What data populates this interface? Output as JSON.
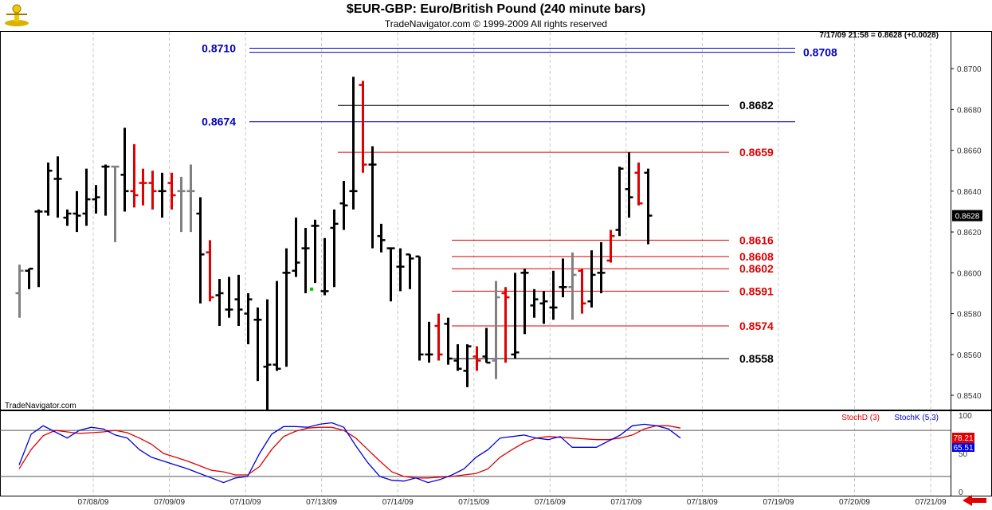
{
  "header": {
    "title": "$EUR-GBP:  Euro/British Pound  (240 minute bars)",
    "subtitle": "TradeNavigator.com © 1999-2009 All rights reserved"
  },
  "info_line": "7/17/09 21:58 = 0.8628 (+0.0028)",
  "watermark": "TradeNavigator.com",
  "last_price_label": "0.8628",
  "stoch_legend": {
    "d": "StochD (3)",
    "k": "StochK (5,3)"
  },
  "stoch_values": {
    "d": "78.21",
    "k": "65.51"
  },
  "colors": {
    "black": "#000000",
    "red": "#e00000",
    "gray": "#808080",
    "blue": "#0000c0",
    "green": "#00cc00",
    "stochD": "#e00000",
    "stochK": "#0000e0"
  },
  "chart_data": [
    {
      "type": "ohlc",
      "title": "$EUR-GBP:  Euro/British Pound  (240 minute bars)",
      "ylim": [
        0.8533,
        0.8718
      ],
      "y_ticks": [
        "0.8540",
        "0.8560",
        "0.8580",
        "0.8600",
        "0.8620",
        "0.8640",
        "0.8660",
        "0.8680",
        "0.8700"
      ],
      "x_ticks": [
        "07/08/09",
        "07/09/09",
        "07/10/09",
        "07/13/09",
        "07/14/09",
        "07/15/09",
        "07/16/09",
        "07/17/09",
        "07/18/09",
        "07/19/09",
        "07/20/09",
        "07/21/09"
      ],
      "grid": "vertical dashed",
      "bars": [
        {
          "o": 0.859,
          "h": 0.8604,
          "l": 0.8578,
          "c": 0.8601,
          "color": "gray"
        },
        {
          "o": 0.8601,
          "h": 0.8602,
          "l": 0.8592,
          "c": 0.8602,
          "color": "black"
        },
        {
          "o": 0.863,
          "h": 0.8631,
          "l": 0.8593,
          "c": 0.863,
          "color": "black"
        },
        {
          "o": 0.863,
          "h": 0.8654,
          "l": 0.8628,
          "c": 0.865,
          "color": "black"
        },
        {
          "o": 0.8646,
          "h": 0.8657,
          "l": 0.8627,
          "c": 0.8646,
          "color": "black"
        },
        {
          "o": 0.8627,
          "h": 0.8631,
          "l": 0.8623,
          "c": 0.8629,
          "color": "black"
        },
        {
          "o": 0.8629,
          "h": 0.864,
          "l": 0.862,
          "c": 0.8628,
          "color": "black"
        },
        {
          "o": 0.8629,
          "h": 0.8651,
          "l": 0.8623,
          "c": 0.8636,
          "color": "black"
        },
        {
          "o": 0.8636,
          "h": 0.8643,
          "l": 0.8629,
          "c": 0.8637,
          "color": "black"
        },
        {
          "o": 0.8652,
          "h": 0.8653,
          "l": 0.8628,
          "c": 0.8652,
          "color": "black"
        },
        {
          "o": 0.8652,
          "h": 0.8652,
          "l": 0.8615,
          "c": 0.8652,
          "color": "gray"
        },
        {
          "o": 0.8648,
          "h": 0.8671,
          "l": 0.863,
          "c": 0.864,
          "color": "black"
        },
        {
          "o": 0.864,
          "h": 0.8663,
          "l": 0.8632,
          "c": 0.8638,
          "color": "red"
        },
        {
          "o": 0.8644,
          "h": 0.8651,
          "l": 0.8633,
          "c": 0.8644,
          "color": "red"
        },
        {
          "o": 0.8644,
          "h": 0.865,
          "l": 0.8631,
          "c": 0.864,
          "color": "red"
        },
        {
          "o": 0.864,
          "h": 0.8649,
          "l": 0.8627,
          "c": 0.864,
          "color": "black"
        },
        {
          "o": 0.8644,
          "h": 0.8649,
          "l": 0.8631,
          "c": 0.8638,
          "color": "red"
        },
        {
          "o": 0.864,
          "h": 0.8647,
          "l": 0.862,
          "c": 0.864,
          "color": "gray"
        },
        {
          "o": 0.864,
          "h": 0.8653,
          "l": 0.862,
          "c": 0.864,
          "color": "gray"
        },
        {
          "o": 0.8629,
          "h": 0.8637,
          "l": 0.8585,
          "c": 0.8609,
          "color": "black"
        },
        {
          "o": 0.861,
          "h": 0.8616,
          "l": 0.8586,
          "c": 0.8588,
          "color": "red"
        },
        {
          "o": 0.8589,
          "h": 0.8597,
          "l": 0.8574,
          "c": 0.859,
          "color": "black"
        },
        {
          "o": 0.8582,
          "h": 0.8598,
          "l": 0.8578,
          "c": 0.8582,
          "color": "black"
        },
        {
          "o": 0.8587,
          "h": 0.8599,
          "l": 0.8574,
          "c": 0.8582,
          "color": "black"
        },
        {
          "o": 0.858,
          "h": 0.859,
          "l": 0.8565,
          "c": 0.8587,
          "color": "black"
        },
        {
          "o": 0.8577,
          "h": 0.8583,
          "l": 0.8547,
          "c": 0.8577,
          "color": "black"
        },
        {
          "o": 0.8554,
          "h": 0.8587,
          "l": 0.8533,
          "c": 0.8555,
          "color": "black"
        },
        {
          "o": 0.8555,
          "h": 0.8596,
          "l": 0.8552,
          "c": 0.8553,
          "color": "black"
        },
        {
          "o": 0.86,
          "h": 0.8612,
          "l": 0.8554,
          "c": 0.86,
          "color": "black"
        },
        {
          "o": 0.8601,
          "h": 0.8627,
          "l": 0.8598,
          "c": 0.8605,
          "color": "black"
        },
        {
          "o": 0.8612,
          "h": 0.8622,
          "l": 0.859,
          "c": 0.8612,
          "color": "black"
        },
        {
          "o": 0.8623,
          "h": 0.8626,
          "l": 0.8595,
          "c": 0.8623,
          "color": "black"
        },
        {
          "o": 0.8591,
          "h": 0.8617,
          "l": 0.8589,
          "c": 0.8591,
          "color": "black"
        },
        {
          "o": 0.8622,
          "h": 0.8631,
          "l": 0.8593,
          "c": 0.8624,
          "color": "black"
        },
        {
          "o": 0.8634,
          "h": 0.8645,
          "l": 0.8621,
          "c": 0.8633,
          "color": "black"
        },
        {
          "o": 0.864,
          "h": 0.8696,
          "l": 0.8631,
          "c": 0.864,
          "color": "black"
        },
        {
          "o": 0.8692,
          "h": 0.8694,
          "l": 0.8649,
          "c": 0.8653,
          "color": "red"
        },
        {
          "o": 0.8653,
          "h": 0.8662,
          "l": 0.8612,
          "c": 0.8653,
          "color": "black"
        },
        {
          "o": 0.8618,
          "h": 0.8624,
          "l": 0.861,
          "c": 0.8616,
          "color": "black"
        },
        {
          "o": 0.8612,
          "h": 0.8612,
          "l": 0.8586,
          "c": 0.8612,
          "color": "black"
        },
        {
          "o": 0.8603,
          "h": 0.8612,
          "l": 0.8591,
          "c": 0.8603,
          "color": "black"
        },
        {
          "o": 0.8609,
          "h": 0.8609,
          "l": 0.8592,
          "c": 0.8607,
          "color": "black"
        },
        {
          "o": 0.8608,
          "h": 0.8608,
          "l": 0.8557,
          "c": 0.856,
          "color": "black"
        },
        {
          "o": 0.856,
          "h": 0.8576,
          "l": 0.8556,
          "c": 0.856,
          "color": "black"
        },
        {
          "o": 0.8574,
          "h": 0.858,
          "l": 0.8557,
          "c": 0.856,
          "color": "red"
        },
        {
          "o": 0.8575,
          "h": 0.8578,
          "l": 0.8555,
          "c": 0.8558,
          "color": "black"
        },
        {
          "o": 0.8557,
          "h": 0.8565,
          "l": 0.8552,
          "c": 0.8553,
          "color": "black"
        },
        {
          "o": 0.8552,
          "h": 0.8565,
          "l": 0.8544,
          "c": 0.8564,
          "color": "black"
        },
        {
          "o": 0.8559,
          "h": 0.8564,
          "l": 0.8552,
          "c": 0.8557,
          "color": "red"
        },
        {
          "o": 0.8559,
          "h": 0.8573,
          "l": 0.8556,
          "c": 0.8556,
          "color": "black"
        },
        {
          "o": 0.8557,
          "h": 0.8596,
          "l": 0.8548,
          "c": 0.8588,
          "color": "gray"
        },
        {
          "o": 0.859,
          "h": 0.8593,
          "l": 0.8556,
          "c": 0.8588,
          "color": "red"
        },
        {
          "o": 0.856,
          "h": 0.86,
          "l": 0.8558,
          "c": 0.8561,
          "color": "black"
        },
        {
          "o": 0.86,
          "h": 0.8602,
          "l": 0.857,
          "c": 0.86,
          "color": "black"
        },
        {
          "o": 0.8584,
          "h": 0.8592,
          "l": 0.8578,
          "c": 0.8587,
          "color": "black"
        },
        {
          "o": 0.8585,
          "h": 0.8591,
          "l": 0.8575,
          "c": 0.8586,
          "color": "black"
        },
        {
          "o": 0.8583,
          "h": 0.8601,
          "l": 0.8577,
          "c": 0.8583,
          "color": "black"
        },
        {
          "o": 0.8593,
          "h": 0.8607,
          "l": 0.8588,
          "c": 0.8593,
          "color": "black"
        },
        {
          "o": 0.8593,
          "h": 0.861,
          "l": 0.8577,
          "c": 0.8599,
          "color": "gray"
        },
        {
          "o": 0.8601,
          "h": 0.8602,
          "l": 0.858,
          "c": 0.8585,
          "color": "red"
        },
        {
          "o": 0.8586,
          "h": 0.8611,
          "l": 0.8583,
          "c": 0.8599,
          "color": "black"
        },
        {
          "o": 0.86,
          "h": 0.8615,
          "l": 0.859,
          "c": 0.86,
          "color": "black"
        },
        {
          "o": 0.8606,
          "h": 0.8621,
          "l": 0.8605,
          "c": 0.8618,
          "color": "red"
        },
        {
          "o": 0.8621,
          "h": 0.8652,
          "l": 0.8618,
          "c": 0.8651,
          "color": "black"
        },
        {
          "o": 0.8641,
          "h": 0.8659,
          "l": 0.8627,
          "c": 0.8637,
          "color": "black"
        },
        {
          "o": 0.8649,
          "h": 0.8654,
          "l": 0.8633,
          "c": 0.8634,
          "color": "red"
        },
        {
          "o": 0.8649,
          "h": 0.8651,
          "l": 0.8614,
          "c": 0.8628,
          "color": "black"
        }
      ],
      "levels": [
        {
          "label": "0.8710",
          "value": 0.871,
          "color": "blue"
        },
        {
          "label": "0.8708",
          "value": 0.8708,
          "color": "blue"
        },
        {
          "label": "0.8674",
          "value": 0.8674,
          "color": "blue"
        },
        {
          "label": "0.8682",
          "value": 0.8682,
          "color": "black"
        },
        {
          "label": "0.8659",
          "value": 0.8659,
          "color": "red"
        },
        {
          "label": "0.8616",
          "value": 0.8616,
          "color": "red"
        },
        {
          "label": "0.8608",
          "value": 0.8608,
          "color": "red"
        },
        {
          "label": "0.8602",
          "value": 0.8602,
          "color": "red"
        },
        {
          "label": "0.8591",
          "value": 0.8591,
          "color": "red"
        },
        {
          "label": "0.8574",
          "value": 0.8574,
          "color": "red"
        },
        {
          "label": "0.8558",
          "value": 0.8558,
          "color": "black"
        }
      ]
    },
    {
      "type": "line",
      "ylim": [
        -5,
        105
      ],
      "y_ticks": [
        "100",
        "50",
        "0"
      ],
      "reference_lines": [
        80,
        20
      ],
      "series": [
        {
          "name": "StochD (3)",
          "color": "#e00000",
          "values": [
            30,
            55,
            73,
            80,
            78,
            76,
            77,
            78,
            80,
            77,
            70,
            62,
            50,
            45,
            40,
            34,
            28,
            26,
            22,
            22,
            33,
            55,
            72,
            79,
            83,
            84,
            84,
            80,
            70,
            55,
            40,
            26,
            20,
            18,
            18,
            19,
            20,
            22,
            24,
            30,
            45,
            55,
            64,
            70,
            72,
            71,
            70,
            69,
            68,
            68,
            70,
            74,
            82,
            86,
            86,
            83
          ]
        },
        {
          "name": "StochK (5,3)",
          "color": "#0000e0",
          "values": [
            35,
            75,
            86,
            78,
            70,
            80,
            84,
            82,
            74,
            70,
            55,
            45,
            40,
            35,
            30,
            24,
            18,
            12,
            18,
            20,
            50,
            75,
            85,
            85,
            84,
            88,
            90,
            84,
            60,
            38,
            20,
            15,
            14,
            18,
            12,
            16,
            22,
            30,
            45,
            55,
            70,
            72,
            74,
            70,
            68,
            72,
            58,
            58,
            58,
            66,
            74,
            86,
            88,
            86,
            82,
            70
          ]
        }
      ]
    }
  ]
}
